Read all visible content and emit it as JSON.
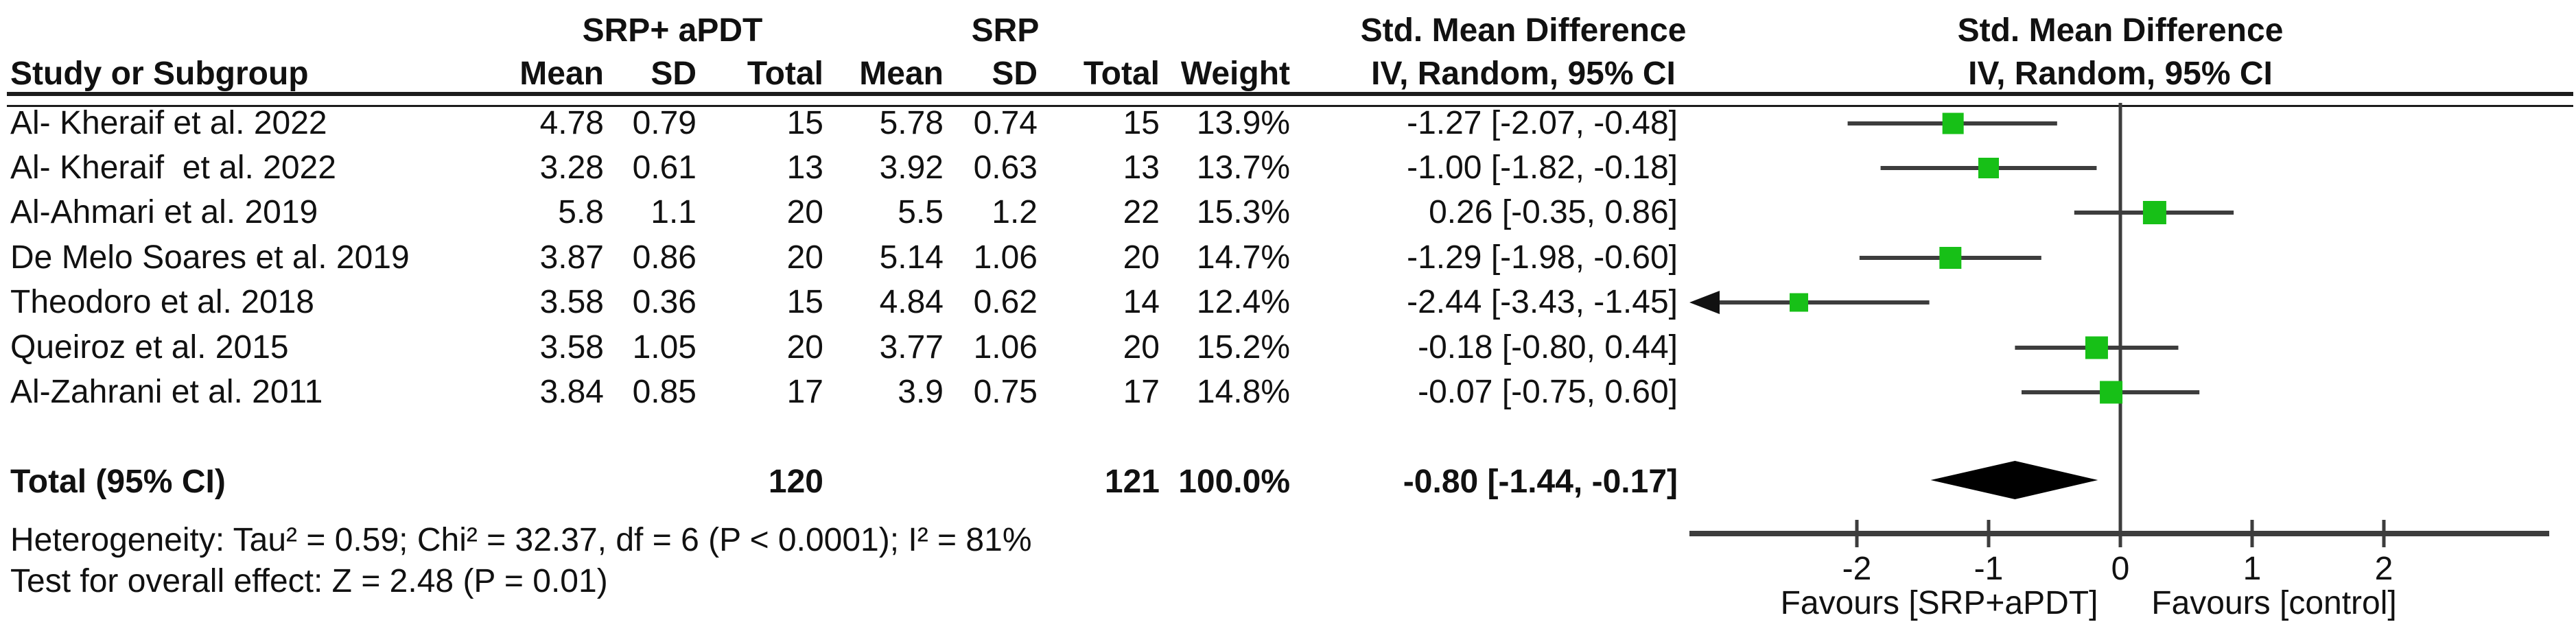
{
  "header": {
    "group1": "SRP+ aPDT",
    "group2": "SRP",
    "smd1": "Std. Mean Difference",
    "smd2": "Std. Mean Difference",
    "study": "Study or Subgroup",
    "mean": "Mean",
    "sd": "SD",
    "total": "Total",
    "weight": "Weight",
    "method1": "IV, Random, 95% CI",
    "method2": "IV, Random, 95% CI"
  },
  "studies": [
    {
      "name": "Al- Kheraif et al. 2022",
      "mean1": "4.78",
      "sd1": "0.79",
      "total1": "15",
      "mean2": "5.78",
      "sd2": "0.74",
      "total2": "15",
      "weight": "13.9%",
      "ci_text": "-1.27 [-2.07, -0.48]",
      "smd": -1.27,
      "ci_low": -2.07,
      "ci_high": -0.48,
      "weight_pct": 13.9
    },
    {
      "name": "Al- Kheraif  et al. 2022",
      "mean1": "3.28",
      "sd1": "0.61",
      "total1": "13",
      "mean2": "3.92",
      "sd2": "0.63",
      "total2": "13",
      "weight": "13.7%",
      "ci_text": "-1.00 [-1.82, -0.18]",
      "smd": -1.0,
      "ci_low": -1.82,
      "ci_high": -0.18,
      "weight_pct": 13.7
    },
    {
      "name": "Al-Ahmari et al. 2019",
      "mean1": "5.8",
      "sd1": "1.1",
      "total1": "20",
      "mean2": "5.5",
      "sd2": "1.2",
      "total2": "22",
      "weight": "15.3%",
      "ci_text": "0.26 [-0.35, 0.86]",
      "smd": 0.26,
      "ci_low": -0.35,
      "ci_high": 0.86,
      "weight_pct": 15.3
    },
    {
      "name": "De Melo Soares et al. 2019",
      "mean1": "3.87",
      "sd1": "0.86",
      "total1": "20",
      "mean2": "5.14",
      "sd2": "1.06",
      "total2": "20",
      "weight": "14.7%",
      "ci_text": "-1.29 [-1.98, -0.60]",
      "smd": -1.29,
      "ci_low": -1.98,
      "ci_high": -0.6,
      "weight_pct": 14.7
    },
    {
      "name": "Theodoro et al. 2018",
      "mean1": "3.58",
      "sd1": "0.36",
      "total1": "15",
      "mean2": "4.84",
      "sd2": "0.62",
      "total2": "14",
      "weight": "12.4%",
      "ci_text": "-2.44 [-3.43, -1.45]",
      "smd": -2.44,
      "ci_low": -3.43,
      "ci_high": -1.45,
      "weight_pct": 12.4
    },
    {
      "name": "Queiroz et al. 2015",
      "mean1": "3.58",
      "sd1": "1.05",
      "total1": "20",
      "mean2": "3.77",
      "sd2": "1.06",
      "total2": "20",
      "weight": "15.2%",
      "ci_text": "-0.18 [-0.80, 0.44]",
      "smd": -0.18,
      "ci_low": -0.8,
      "ci_high": 0.44,
      "weight_pct": 15.2
    },
    {
      "name": "Al-Zahrani et al. 2011",
      "mean1": "3.84",
      "sd1": "0.85",
      "total1": "17",
      "mean2": "3.9",
      "sd2": "0.75",
      "total2": "17",
      "weight": "14.8%",
      "ci_text": "-0.07 [-0.75, 0.60]",
      "smd": -0.07,
      "ci_low": -0.75,
      "ci_high": 0.6,
      "weight_pct": 14.8
    }
  ],
  "total": {
    "label": "Total (95% CI)",
    "total1": "120",
    "total2": "121",
    "weight": "100.0%",
    "ci_text": "-0.80 [-1.44, -0.17]",
    "smd": -0.8,
    "ci_low": -1.44,
    "ci_high": -0.17
  },
  "footnotes": {
    "heterogeneity": "Heterogeneity: Tau² = 0.59; Chi² = 32.37, df = 6 (P < 0.0001); I² = 81%",
    "overall_effect": "Test for overall effect: Z = 2.48 (P = 0.01)"
  },
  "axis": {
    "ticks": [
      -2,
      -1,
      0,
      1,
      2
    ],
    "favours_left": "Favours [SRP+aPDT]",
    "favours_right": "Favours [control]"
  },
  "colors": {
    "marker_green": "#17c017",
    "line_gray": "#3d3d3d",
    "diamond_black": "#000000",
    "text_black": "#111111"
  },
  "chart_data": {
    "type": "forest",
    "title": "",
    "effect_measure": "Std. Mean Difference (IV, Random, 95% CI)",
    "comparison_groups": [
      "SRP+ aPDT",
      "SRP"
    ],
    "categories": [
      "Al- Kheraif et al. 2022",
      "Al- Kheraif  et al. 2022",
      "Al-Ahmari et al. 2019",
      "De Melo Soares et al. 2019",
      "Theodoro et al. 2018",
      "Queiroz et al. 2015",
      "Al-Zahrani et al. 2011"
    ],
    "smd": [
      -1.27,
      -1.0,
      0.26,
      -1.29,
      -2.44,
      -0.18,
      -0.07
    ],
    "ci_low": [
      -2.07,
      -1.82,
      -0.35,
      -1.98,
      -3.43,
      -0.8,
      -0.75
    ],
    "ci_high": [
      -0.48,
      -0.18,
      0.86,
      -0.6,
      -1.45,
      0.44,
      0.6
    ],
    "weights_pct": [
      13.9,
      13.7,
      15.3,
      14.7,
      12.4,
      15.2,
      14.8
    ],
    "group1": {
      "label": "SRP+ aPDT",
      "means": [
        4.78,
        3.28,
        5.8,
        3.87,
        3.58,
        3.58,
        3.84
      ],
      "sds": [
        0.79,
        0.61,
        1.1,
        0.86,
        0.36,
        1.05,
        0.85
      ],
      "totals": [
        15,
        13,
        20,
        20,
        15,
        20,
        17
      ],
      "total_n": 120
    },
    "group2": {
      "label": "SRP",
      "means": [
        5.78,
        3.92,
        5.5,
        5.14,
        4.84,
        3.77,
        3.9
      ],
      "sds": [
        0.74,
        0.63,
        1.2,
        1.06,
        0.62,
        1.06,
        0.75
      ],
      "totals": [
        15,
        13,
        22,
        20,
        14,
        20,
        17
      ],
      "total_n": 121
    },
    "pooled": {
      "smd": -0.8,
      "ci": [
        -1.44,
        -0.17
      ],
      "weight_pct": 100.0
    },
    "heterogeneity": {
      "tau2": 0.59,
      "chi2": 32.37,
      "df": 6,
      "p": "< 0.0001",
      "i2_pct": 81
    },
    "overall_effect": {
      "z": 2.48,
      "p": 0.01
    },
    "xaxis": {
      "ticks": [
        -2,
        -1,
        0,
        1,
        2
      ],
      "displayed_range": [
        -3.27,
        3.26
      ],
      "label_left": "Favours [SRP+aPDT]",
      "label_right": "Favours [control]"
    },
    "clipped_arrows": [
      {
        "study_index": 4,
        "direction": "left"
      }
    ],
    "legend_position": "none",
    "grid": false
  }
}
